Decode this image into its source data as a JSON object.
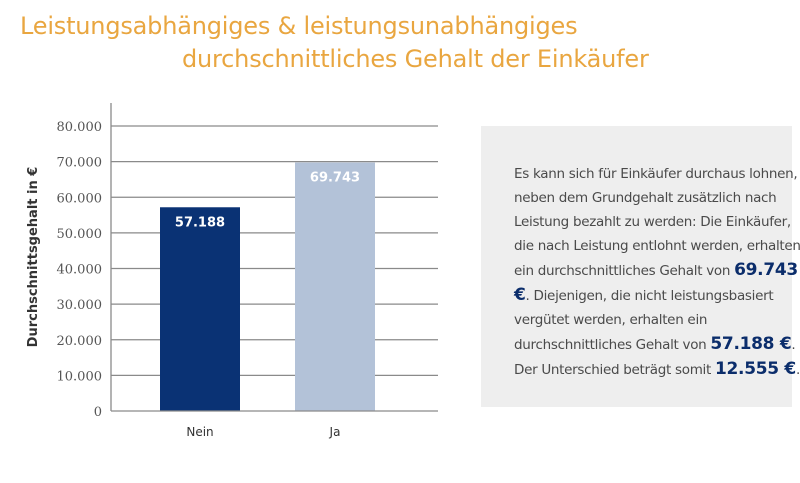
{
  "title_line1": "Leistungsabhängiges & leistungsunabhängiges",
  "title_line2": "durchschnittliches Gehalt der Einkäufer",
  "chart_data": {
    "type": "bar",
    "categories": [
      "Nein",
      "Ja"
    ],
    "values": [
      57188,
      69743
    ],
    "data_labels": [
      "57.188",
      "69.743"
    ],
    "colors": [
      "#0a3274",
      "#b3c2d8"
    ],
    "ylabel": "Durchschnittsgehalt  in €",
    "xlabel": "",
    "ylim": [
      0,
      80000
    ],
    "yticks": [
      0,
      10000,
      20000,
      30000,
      40000,
      50000,
      60000,
      70000,
      80000
    ],
    "ytick_labels": [
      "0",
      "10.000",
      "20.000",
      "30.000",
      "40.000",
      "50.000",
      "60.000",
      "70.000",
      "80.000"
    ],
    "grid": true
  },
  "info": {
    "p1": "Es kann sich für Einkäufer durchaus lohnen, neben dem Grundgehalt zusätzlich nach Leistung bezahlt zu werden: Die Einkäufer, die nach Leistung entlohnt werden, erhalten ein durchschnittliches Gehalt von ",
    "v1": "69.743 €",
    "p2": ". Diejenigen, die nicht leistungsbasiert vergü­tet werden, erhalten ein durchschnittliches Gehalt von ",
    "v2": "57.188 €",
    "p3": ". Der Unterschied beträgt somit ",
    "v3": "12.555 €",
    "p4": "."
  }
}
